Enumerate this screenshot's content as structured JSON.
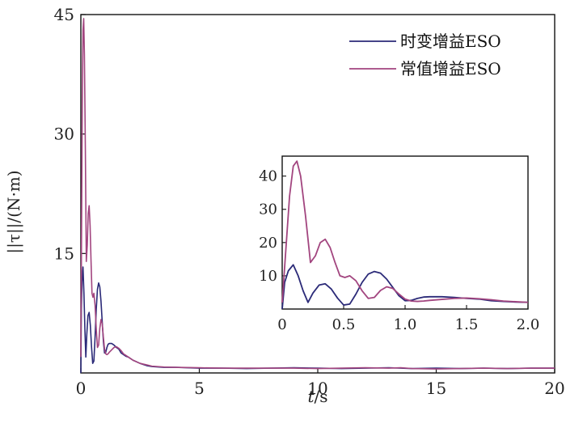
{
  "colors": {
    "series_timevarying": "#2b2a78",
    "series_constant": "#a2457f",
    "axis": "#111111"
  },
  "chart_data": {
    "type": "line",
    "xlabel_italic": "t",
    "xlabel_unit": "/s",
    "ylabel": "||τ||/(N·m)",
    "xlim": [
      0,
      20
    ],
    "ylim": [
      0,
      45
    ],
    "xticks": [
      0,
      5,
      10,
      15,
      20
    ],
    "yticks": [
      15,
      30,
      45
    ],
    "legend_placement": "top-right",
    "series": [
      {
        "name": "时变增益ESO",
        "color_key": "series_timevarying",
        "x": [
          0,
          0.02,
          0.05,
          0.09,
          0.13,
          0.17,
          0.21,
          0.25,
          0.3,
          0.35,
          0.4,
          0.45,
          0.5,
          0.55,
          0.6,
          0.65,
          0.7,
          0.75,
          0.8,
          0.85,
          0.9,
          0.95,
          1.0,
          1.05,
          1.1,
          1.15,
          1.2,
          1.3,
          1.4,
          1.5,
          1.6,
          1.7,
          1.8,
          1.9,
          2.0,
          2.2,
          2.5,
          2.8,
          3.0,
          3.5,
          4.0,
          5.0,
          6.0,
          7.0,
          8.0,
          9.0,
          10.0,
          11.0,
          12.0,
          13.0,
          13.5,
          14.0,
          15.0,
          16.0,
          17.0,
          18.0,
          19.0,
          20.0
        ],
        "y": [
          0,
          8,
          11.5,
          13.3,
          10,
          5.5,
          2.0,
          4.8,
          7.2,
          7.6,
          6.0,
          3.3,
          1.2,
          1.5,
          4.5,
          8.0,
          10.5,
          11.3,
          10.8,
          9.0,
          6.5,
          4.0,
          2.5,
          2.6,
          3.2,
          3.6,
          3.7,
          3.7,
          3.5,
          3.2,
          3.0,
          2.5,
          2.3,
          2.1,
          2.0,
          1.6,
          1.2,
          0.9,
          0.8,
          0.7,
          0.7,
          0.6,
          0.6,
          0.55,
          0.6,
          0.65,
          0.6,
          0.55,
          0.6,
          0.65,
          0.6,
          0.55,
          0.6,
          0.55,
          0.6,
          0.55,
          0.6,
          0.6
        ]
      },
      {
        "name": "常值增益ESO",
        "color_key": "series_constant",
        "x": [
          0,
          0.03,
          0.06,
          0.09,
          0.12,
          0.15,
          0.19,
          0.23,
          0.27,
          0.31,
          0.35,
          0.39,
          0.43,
          0.47,
          0.51,
          0.55,
          0.6,
          0.65,
          0.7,
          0.75,
          0.8,
          0.85,
          0.9,
          0.95,
          1.0,
          1.05,
          1.1,
          1.15,
          1.2,
          1.3,
          1.4,
          1.5,
          1.6,
          1.7,
          1.8,
          1.9,
          2.0,
          2.2,
          2.5,
          2.8,
          3.0,
          3.5,
          4.0,
          5.0,
          6.0,
          7.0,
          8.0,
          9.0,
          10.0,
          11.0,
          12.0,
          13.0,
          13.5,
          14.0,
          15.0,
          16.0,
          17.0,
          18.0,
          19.0,
          20.0
        ],
        "y": [
          2,
          18,
          34,
          43,
          44.5,
          40,
          28,
          14,
          16,
          20,
          21,
          18.5,
          14,
          10,
          9.5,
          10,
          8.5,
          5.5,
          3.2,
          3.5,
          5.6,
          6.7,
          6.2,
          4.5,
          3.0,
          2.4,
          2.3,
          2.4,
          2.6,
          2.9,
          3.2,
          3.3,
          3.1,
          2.8,
          2.4,
          2.2,
          2.0,
          1.6,
          1.2,
          1.0,
          0.85,
          0.75,
          0.7,
          0.65,
          0.6,
          0.6,
          0.6,
          0.6,
          0.55,
          0.6,
          0.65,
          0.6,
          0.65,
          0.55,
          0.5,
          0.55,
          0.6,
          0.55,
          0.6,
          0.6
        ]
      }
    ],
    "inset": {
      "xlim": [
        0,
        2.0
      ],
      "ylim": [
        0,
        46
      ],
      "xticks": [
        0,
        0.5,
        1.0,
        1.5,
        2.0
      ],
      "xtick_labels": [
        "0",
        "0.5",
        "1.0",
        "1.5",
        "2.0"
      ],
      "yticks": [
        10,
        20,
        30,
        40
      ]
    }
  }
}
